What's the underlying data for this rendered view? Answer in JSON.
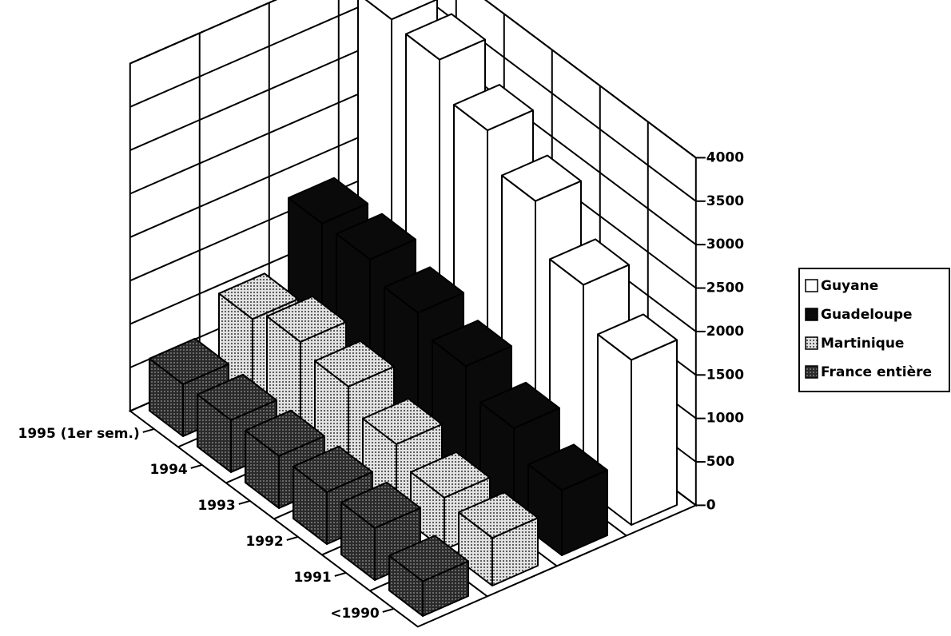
{
  "chart_data": {
    "type": "bar3d",
    "categories": [
      "1995 (1er sem.)",
      "1994",
      "1993",
      "1992",
      "1991",
      "<1990"
    ],
    "series": [
      {
        "name": "Guyane",
        "color": "#ffffff",
        "values": [
          3750,
          3700,
          3300,
          2900,
          2350,
          1900
        ]
      },
      {
        "name": "Guadeloupe",
        "color": "#0a0a0a",
        "values": [
          1750,
          1750,
          1550,
          1350,
          1050,
          750
        ]
      },
      {
        "name": "Martinique",
        "color": "#e2e2e2",
        "pattern": "dots",
        "values": [
          1000,
          1150,
          1050,
          800,
          600,
          550
        ]
      },
      {
        "name": "France entière",
        "color": "#2a2a2a",
        "pattern": "dots",
        "values": [
          600,
          600,
          600,
          600,
          600,
          400
        ]
      }
    ],
    "ylim": [
      0,
      4000
    ],
    "yticks": [
      0,
      500,
      1000,
      1500,
      2000,
      2500,
      3000,
      3500,
      4000
    ],
    "grid": true,
    "legend": "right"
  }
}
